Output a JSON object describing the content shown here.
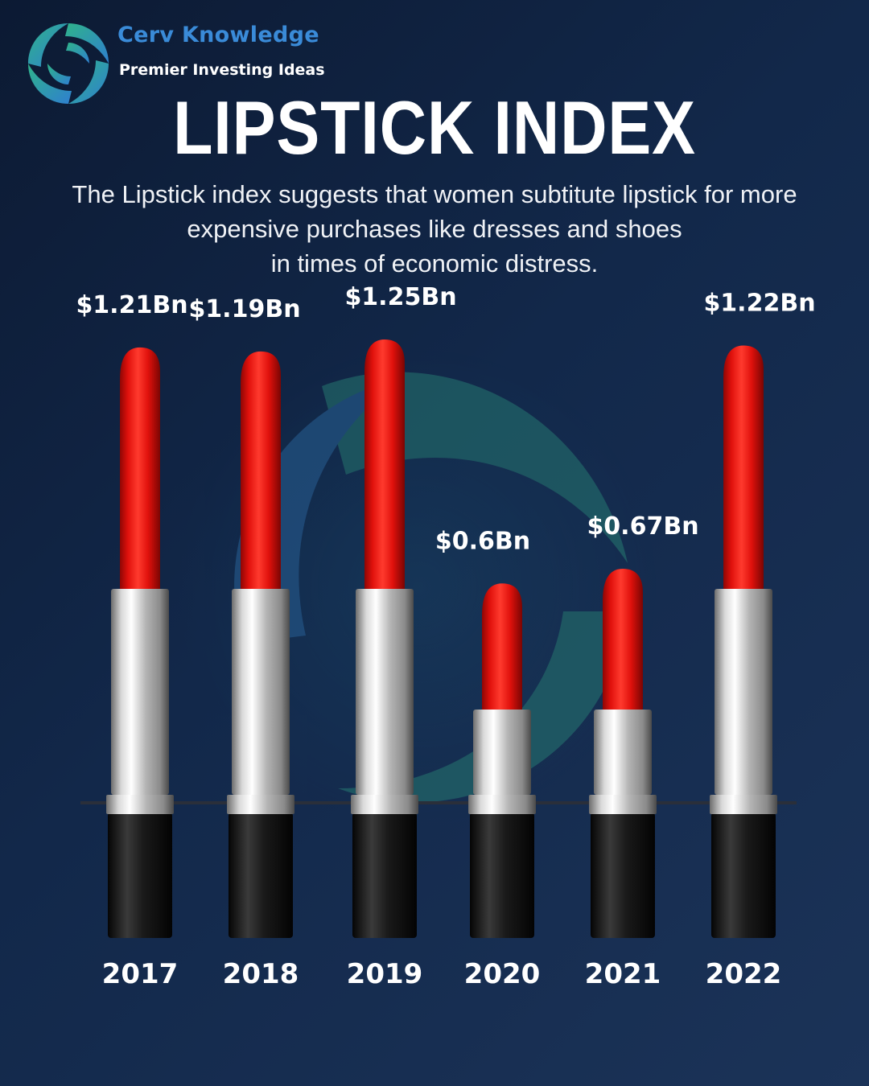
{
  "brand": {
    "name": "Cerv Knowledge",
    "tagline": "Premier Investing Ideas",
    "logo_icon": "swirl-logo-icon",
    "colors": {
      "blue": "#2f7fd0",
      "green": "#2fb38a"
    }
  },
  "subtitle_lines": [
    "The Lipstick index suggests that women subtitute lipstick for more",
    "expensive purchases like dresses and shoes",
    "in times of economic distress."
  ],
  "chart_data": {
    "type": "bar",
    "title": "LIPSTICK INDEX",
    "xlabel": "",
    "ylabel": "",
    "categories": [
      "2017",
      "2018",
      "2019",
      "2020",
      "2021",
      "2022"
    ],
    "values": [
      1.21,
      1.19,
      1.25,
      0.6,
      0.67,
      1.22
    ],
    "data_labels": [
      "$1.21Bn",
      "$1.19Bn",
      "$1.25Bn",
      "$0.6Bn",
      "$0.67Bn",
      "$1.22Bn"
    ],
    "unit": "Bn",
    "ylim": [
      0,
      1.25
    ],
    "grid": false,
    "legend": "none",
    "bar_style": "lipstick",
    "colors": {
      "bullet": "#e8130f",
      "tube": "#c9c9c9",
      "base": "#111111",
      "background": "#10213f"
    }
  }
}
